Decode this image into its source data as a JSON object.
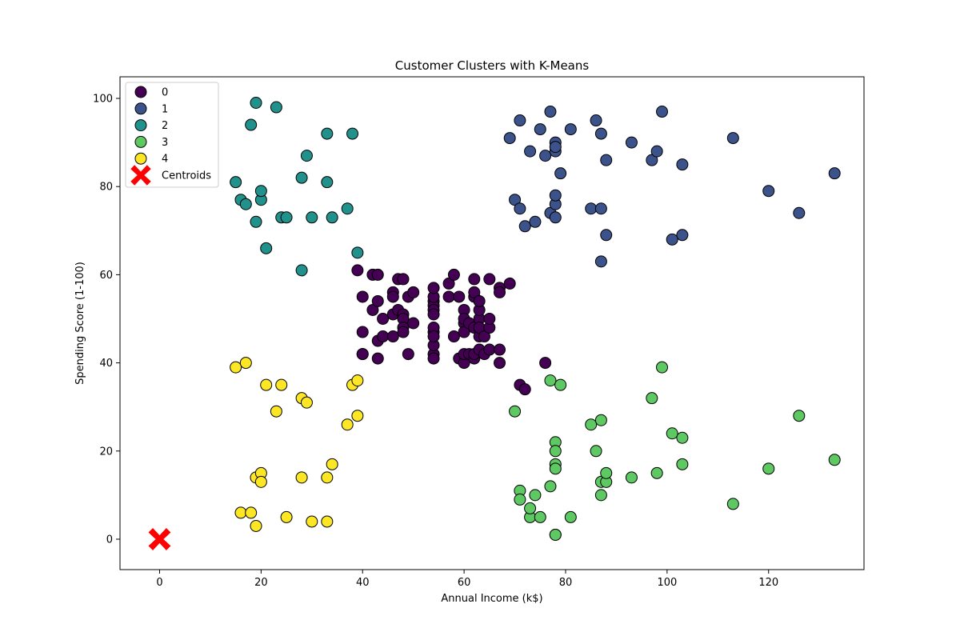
{
  "chart_data": {
    "type": "scatter",
    "title": "Customer Clusters with K-Means",
    "xlabel": "Annual Income (k$)",
    "ylabel": "Spending Score (1-100)",
    "xlim": [
      -7.8,
      138.8
    ],
    "ylim": [
      -6.9,
      104.9
    ],
    "xticks": [
      0,
      20,
      40,
      60,
      80,
      100,
      120
    ],
    "yticks": [
      0,
      20,
      40,
      60,
      80,
      100
    ],
    "grid": false,
    "legend_position": "top-left",
    "series": [
      {
        "name": "0",
        "color": "#440154",
        "points": [
          [
            39,
            61
          ],
          [
            40,
            55
          ],
          [
            40,
            47
          ],
          [
            40,
            42
          ],
          [
            40,
            42
          ],
          [
            42,
            52
          ],
          [
            42,
            60
          ],
          [
            43,
            54
          ],
          [
            43,
            60
          ],
          [
            43,
            45
          ],
          [
            43,
            41
          ],
          [
            44,
            50
          ],
          [
            44,
            46
          ],
          [
            46,
            51
          ],
          [
            46,
            46
          ],
          [
            46,
            56
          ],
          [
            46,
            55
          ],
          [
            47,
            52
          ],
          [
            47,
            59
          ],
          [
            48,
            51
          ],
          [
            48,
            59
          ],
          [
            48,
            50
          ],
          [
            48,
            48
          ],
          [
            48,
            47
          ],
          [
            49,
            55
          ],
          [
            49,
            42
          ],
          [
            50,
            49
          ],
          [
            50,
            56
          ],
          [
            54,
            47
          ],
          [
            54,
            54
          ],
          [
            54,
            53
          ],
          [
            54,
            48
          ],
          [
            54,
            52
          ],
          [
            54,
            42
          ],
          [
            54,
            51
          ],
          [
            54,
            55
          ],
          [
            54,
            41
          ],
          [
            54,
            44
          ],
          [
            54,
            57
          ],
          [
            54,
            46
          ],
          [
            57,
            58
          ],
          [
            57,
            55
          ],
          [
            58,
            60
          ],
          [
            58,
            46
          ],
          [
            59,
            55
          ],
          [
            59,
            41
          ],
          [
            60,
            49
          ],
          [
            60,
            40
          ],
          [
            60,
            42
          ],
          [
            60,
            52
          ],
          [
            60,
            47
          ],
          [
            60,
            50
          ],
          [
            61,
            42
          ],
          [
            61,
            49
          ],
          [
            62,
            41
          ],
          [
            62,
            48
          ],
          [
            62,
            59
          ],
          [
            62,
            55
          ],
          [
            62,
            56
          ],
          [
            62,
            42
          ],
          [
            63,
            50
          ],
          [
            63,
            46
          ],
          [
            63,
            43
          ],
          [
            63,
            48
          ],
          [
            63,
            52
          ],
          [
            63,
            54
          ],
          [
            64,
            42
          ],
          [
            64,
            46
          ],
          [
            65,
            48
          ],
          [
            65,
            50
          ],
          [
            65,
            43
          ],
          [
            65,
            59
          ],
          [
            67,
            43
          ],
          [
            67,
            57
          ],
          [
            67,
            56
          ],
          [
            67,
            40
          ],
          [
            69,
            58
          ],
          [
            71,
            35
          ],
          [
            72,
            34
          ],
          [
            76,
            40
          ]
        ]
      },
      {
        "name": "1",
        "color": "#3b528b",
        "points": [
          [
            69,
            91
          ],
          [
            70,
            77
          ],
          [
            71,
            95
          ],
          [
            71,
            75
          ],
          [
            72,
            71
          ],
          [
            73,
            88
          ],
          [
            74,
            72
          ],
          [
            75,
            93
          ],
          [
            76,
            87
          ],
          [
            77,
            97
          ],
          [
            77,
            74
          ],
          [
            78,
            90
          ],
          [
            78,
            88
          ],
          [
            78,
            76
          ],
          [
            78,
            89
          ],
          [
            78,
            78
          ],
          [
            78,
            73
          ],
          [
            79,
            83
          ],
          [
            81,
            93
          ],
          [
            85,
            75
          ],
          [
            86,
            95
          ],
          [
            87,
            63
          ],
          [
            87,
            75
          ],
          [
            87,
            92
          ],
          [
            88,
            86
          ],
          [
            88,
            69
          ],
          [
            93,
            90
          ],
          [
            97,
            86
          ],
          [
            98,
            88
          ],
          [
            99,
            97
          ],
          [
            101,
            68
          ],
          [
            103,
            85
          ],
          [
            103,
            69
          ],
          [
            113,
            91
          ],
          [
            120,
            79
          ],
          [
            126,
            74
          ],
          [
            133,
            83
          ]
        ]
      },
      {
        "name": "2",
        "color": "#21918c",
        "points": [
          [
            15,
            81
          ],
          [
            16,
            77
          ],
          [
            17,
            76
          ],
          [
            18,
            94
          ],
          [
            19,
            72
          ],
          [
            19,
            99
          ],
          [
            20,
            77
          ],
          [
            20,
            79
          ],
          [
            21,
            66
          ],
          [
            23,
            98
          ],
          [
            24,
            73
          ],
          [
            25,
            73
          ],
          [
            28,
            82
          ],
          [
            28,
            61
          ],
          [
            29,
            87
          ],
          [
            30,
            73
          ],
          [
            33,
            92
          ],
          [
            33,
            81
          ],
          [
            34,
            73
          ],
          [
            37,
            75
          ],
          [
            38,
            92
          ],
          [
            39,
            65
          ]
        ]
      },
      {
        "name": "3",
        "color": "#5ec962",
        "points": [
          [
            70,
            29
          ],
          [
            71,
            11
          ],
          [
            71,
            9
          ],
          [
            73,
            5
          ],
          [
            73,
            7
          ],
          [
            74,
            10
          ],
          [
            75,
            5
          ],
          [
            77,
            12
          ],
          [
            77,
            36
          ],
          [
            78,
            22
          ],
          [
            78,
            17
          ],
          [
            78,
            20
          ],
          [
            78,
            16
          ],
          [
            78,
            1
          ],
          [
            78,
            1
          ],
          [
            79,
            35
          ],
          [
            81,
            5
          ],
          [
            85,
            26
          ],
          [
            86,
            20
          ],
          [
            87,
            27
          ],
          [
            87,
            13
          ],
          [
            87,
            10
          ],
          [
            88,
            13
          ],
          [
            88,
            15
          ],
          [
            93,
            14
          ],
          [
            97,
            32
          ],
          [
            98,
            15
          ],
          [
            99,
            39
          ],
          [
            101,
            24
          ],
          [
            103,
            17
          ],
          [
            103,
            23
          ],
          [
            113,
            8
          ],
          [
            120,
            16
          ],
          [
            126,
            28
          ],
          [
            133,
            18
          ]
        ]
      },
      {
        "name": "4",
        "color": "#fde725",
        "points": [
          [
            15,
            39
          ],
          [
            16,
            6
          ],
          [
            17,
            40
          ],
          [
            18,
            6
          ],
          [
            19,
            3
          ],
          [
            19,
            14
          ],
          [
            20,
            15
          ],
          [
            20,
            13
          ],
          [
            21,
            35
          ],
          [
            23,
            29
          ],
          [
            24,
            35
          ],
          [
            25,
            5
          ],
          [
            28,
            14
          ],
          [
            28,
            32
          ],
          [
            29,
            31
          ],
          [
            30,
            4
          ],
          [
            33,
            4
          ],
          [
            33,
            14
          ],
          [
            34,
            17
          ],
          [
            37,
            26
          ],
          [
            38,
            35
          ],
          [
            39,
            36
          ],
          [
            39,
            28
          ]
        ]
      },
      {
        "name": "Centroids",
        "color": "#ff0000",
        "marker": "X",
        "points": [
          [
            0,
            0
          ],
          [
            0,
            0
          ],
          [
            0,
            0
          ],
          [
            0,
            0
          ],
          [
            0,
            0
          ]
        ]
      }
    ]
  }
}
